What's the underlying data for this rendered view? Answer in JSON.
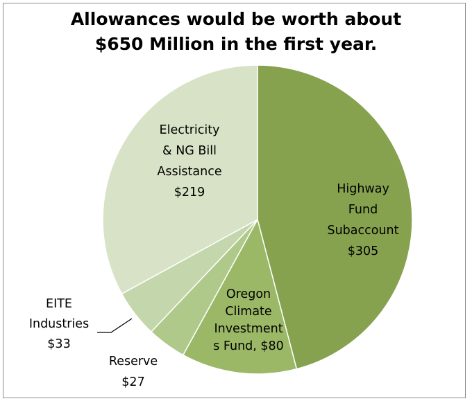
{
  "chart_data": {
    "type": "pie",
    "title_lines": [
      "Allowances would be worth about",
      "$650 Million in the first year."
    ],
    "slices": [
      {
        "key": "highway",
        "label_lines": [
          "Highway",
          "Fund",
          "Subaccount",
          "$305"
        ],
        "value": 305,
        "color": "#86a24f"
      },
      {
        "key": "oregon",
        "label_lines": [
          "Oregon",
          "Climate",
          "Investment",
          "s Fund, $80"
        ],
        "value": 80,
        "color": "#9ab866"
      },
      {
        "key": "reserve",
        "label_lines": [
          "Reserve",
          "$27"
        ],
        "value": 27,
        "color": "#afc98a"
      },
      {
        "key": "eite",
        "label_lines": [
          "EITE",
          "Industries",
          "$33"
        ],
        "value": 33,
        "color": "#c4d6ab"
      },
      {
        "key": "electricity",
        "label_lines": [
          "Electricity",
          "& NG Bill",
          "Assistance",
          "$219"
        ],
        "value": 219,
        "color": "#d7e2c6"
      }
    ]
  }
}
